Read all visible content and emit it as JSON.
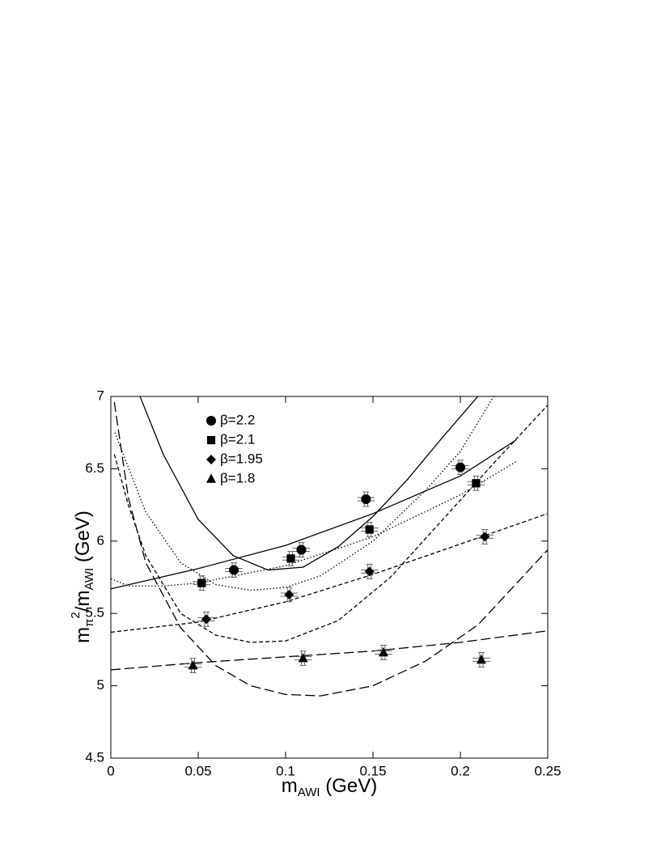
{
  "chart_data": {
    "type": "scatter",
    "xlabel": [
      {
        "text": "m"
      },
      {
        "text": "AWI",
        "sub": true
      },
      {
        "text": " (GeV)"
      }
    ],
    "ylabel": [
      {
        "text": "m"
      },
      {
        "text": "π",
        "sub": true
      },
      {
        "text": "2",
        "sup": true
      },
      {
        "text": "/m"
      },
      {
        "text": "AWI",
        "sub": true
      },
      {
        "text": " (GeV)"
      }
    ],
    "xlim": [
      0,
      0.25
    ],
    "ylim": [
      4.5,
      7
    ],
    "xticks": [
      0,
      0.05,
      0.1,
      0.15,
      0.2,
      0.25
    ],
    "yticks": [
      4.5,
      5,
      5.5,
      6,
      6.5,
      7
    ],
    "series": [
      {
        "name": "β=2.2",
        "marker": "circle",
        "color": "#000000",
        "x": [
          0.0704,
          0.109,
          0.146,
          0.2
        ],
        "values": [
          5.8,
          5.94,
          6.29,
          6.51
        ],
        "xerr": [
          0.005,
          0.005,
          0.005,
          0.005
        ],
        "yerr": [
          0.05,
          0.05,
          0.05,
          0.05
        ]
      },
      {
        "name": "β=2.1",
        "marker": "square",
        "color": "#000000",
        "x": [
          0.052,
          0.103,
          0.148,
          0.209
        ],
        "values": [
          5.71,
          5.88,
          6.08,
          6.4
        ],
        "xerr": [
          0.005,
          0.005,
          0.005,
          0.005
        ],
        "yerr": [
          0.05,
          0.05,
          0.05,
          0.05
        ]
      },
      {
        "name": "β=1.95",
        "marker": "diamond",
        "color": "#000000",
        "x": [
          0.0546,
          0.102,
          0.148,
          0.214
        ],
        "values": [
          5.46,
          5.63,
          5.79,
          6.03
        ],
        "xerr": [
          0.005,
          0.005,
          0.005,
          0.005
        ],
        "yerr": [
          0.05,
          0.05,
          0.05,
          0.05
        ]
      },
      {
        "name": "β=1.8",
        "marker": "triangle",
        "color": "#000000",
        "x": [
          0.047,
          0.11,
          0.156,
          0.212
        ],
        "values": [
          5.14,
          5.19,
          5.23,
          5.18
        ],
        "xerr": [
          0.005,
          0.005,
          0.005,
          0.005
        ],
        "yerr": [
          0.05,
          0.05,
          0.05,
          0.05
        ]
      }
    ],
    "fits": [
      {
        "dash": "none",
        "x": [
          0,
          0.05,
          0.1,
          0.15,
          0.2,
          0.232
        ],
        "values": [
          5.67,
          5.81,
          5.97,
          6.19,
          6.45,
          6.7
        ]
      },
      {
        "dash": "none",
        "x": [
          0.0167,
          0.03,
          0.05,
          0.07,
          0.09,
          0.11,
          0.13,
          0.15,
          0.17,
          0.19,
          0.21
        ],
        "values": [
          7,
          6.6,
          6.15,
          5.9,
          5.8,
          5.82,
          5.96,
          6.17,
          6.43,
          6.72,
          7
        ]
      },
      {
        "dash": "1.5,2.5",
        "x": [
          0,
          0.01,
          0.03,
          0.05,
          0.1,
          0.15,
          0.2,
          0.232
        ],
        "values": [
          5.74,
          5.69,
          5.69,
          5.71,
          5.83,
          6.03,
          6.32,
          6.55
        ]
      },
      {
        "dash": "1.5,2.5",
        "x": [
          0.0023,
          0.02,
          0.04,
          0.06,
          0.08,
          0.1,
          0.12,
          0.15,
          0.18,
          0.2,
          0.219
        ],
        "values": [
          6.75,
          6.2,
          5.85,
          5.7,
          5.66,
          5.68,
          5.76,
          6,
          6.35,
          6.62,
          7
        ]
      },
      {
        "dash": "5,3",
        "x": [
          0,
          0.05,
          0.1,
          0.15,
          0.2,
          0.25
        ],
        "values": [
          5.37,
          5.44,
          5.58,
          5.77,
          5.98,
          6.19
        ]
      },
      {
        "dash": "5,3",
        "x": [
          0.002,
          0.01,
          0.02,
          0.04,
          0.06,
          0.08,
          0.1,
          0.13,
          0.16,
          0.19,
          0.22,
          0.25
        ],
        "values": [
          6.6,
          6.25,
          5.9,
          5.5,
          5.35,
          5.3,
          5.31,
          5.45,
          5.75,
          6.15,
          6.55,
          6.94
        ]
      },
      {
        "dash": "12,5",
        "x": [
          0,
          0.05,
          0.1,
          0.15,
          0.2,
          0.25
        ],
        "values": [
          5.11,
          5.16,
          5.2,
          5.24,
          5.3,
          5.38
        ]
      },
      {
        "dash": "12,5",
        "x": [
          0.002,
          0.01,
          0.02,
          0.04,
          0.06,
          0.08,
          0.1,
          0.12,
          0.15,
          0.18,
          0.21,
          0.25
        ],
        "values": [
          6.96,
          6.3,
          5.85,
          5.4,
          5.14,
          5,
          4.94,
          4.93,
          5,
          5.17,
          5.42,
          5.94
        ]
      }
    ]
  }
}
